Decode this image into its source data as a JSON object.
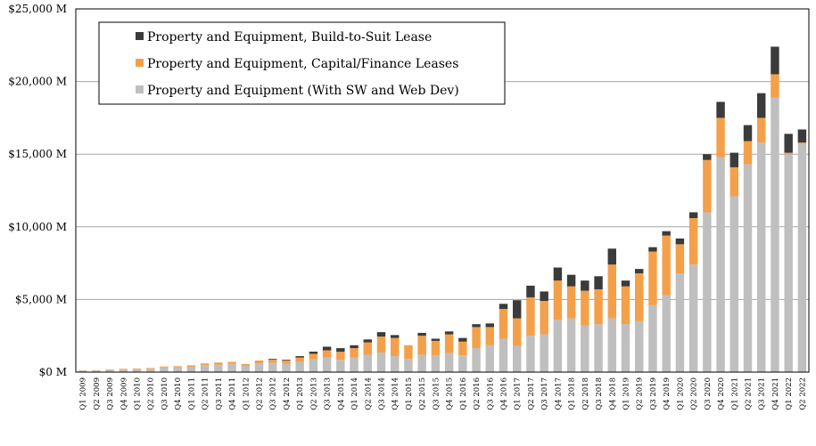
{
  "chart_data": {
    "type": "bar",
    "stacked": true,
    "title": "",
    "xlabel": "",
    "ylabel": "",
    "ylim": [
      0,
      25000
    ],
    "yticks": [
      0,
      5000,
      10000,
      15000,
      20000,
      25000
    ],
    "ytick_labels": [
      "$0 M",
      "$5,000 M",
      "$10,000 M",
      "$15,000 M",
      "$20,000 M",
      "$25,000 M"
    ],
    "grid": "horizontal",
    "legend_position": "top-left",
    "categories": [
      "Q1 2009",
      "Q2 2009",
      "Q3 2009",
      "Q4 2009",
      "Q1 2010",
      "Q2 2010",
      "Q3 2010",
      "Q4 2010",
      "Q1 2011",
      "Q2 2011",
      "Q3 2011",
      "Q4 2011",
      "Q1 2012",
      "Q2 2012",
      "Q3 2012",
      "Q4 2012",
      "Q1 2013",
      "Q2 2013",
      "Q3 2013",
      "Q4 2013",
      "Q1 2014",
      "Q2 2014",
      "Q3 2014",
      "Q4 2014",
      "Q1 2015",
      "Q2 2015",
      "Q3 2015",
      "Q4 2015",
      "Q1 2016",
      "Q2 2016",
      "Q3 2016",
      "Q4 2016",
      "Q1 2017",
      "Q2 2017",
      "Q3 2017",
      "Q4 2017",
      "Q1 2018",
      "Q2 2018",
      "Q3 2018",
      "Q4 2018",
      "Q1 2019",
      "Q2 2019",
      "Q3 2019",
      "Q4 2019",
      "Q1 2020",
      "Q2 2020",
      "Q3 2020",
      "Q4 2020",
      "Q1 2021",
      "Q2 2021",
      "Q3 2021",
      "Q4 2021",
      "Q1 2022",
      "Q2 2022"
    ],
    "series": [
      {
        "name": "Property and Equipment (With SW and Web Dev)",
        "color": "#bfbfbf",
        "values": [
          100,
          110,
          150,
          180,
          200,
          220,
          320,
          330,
          370,
          480,
          520,
          560,
          430,
          600,
          650,
          580,
          700,
          880,
          1000,
          850,
          1000,
          1200,
          1350,
          1100,
          900,
          1200,
          1150,
          1300,
          1150,
          1650,
          1850,
          2300,
          1800,
          2500,
          2600,
          3600,
          3700,
          3200,
          3300,
          3700,
          3300,
          3500,
          4600,
          5300,
          6800,
          7400,
          11000,
          14800,
          12100,
          14300,
          15800,
          18900,
          15000,
          15700
        ]
      },
      {
        "name": "Property and Equipment, Capital/Finance Leases",
        "color": "#f4a04a",
        "values": [
          20,
          25,
          35,
          45,
          50,
          60,
          70,
          80,
          100,
          120,
          140,
          150,
          130,
          200,
          220,
          220,
          300,
          380,
          500,
          550,
          650,
          850,
          1100,
          1250,
          950,
          1300,
          1000,
          1300,
          950,
          1450,
          1250,
          2050,
          1900,
          2650,
          2300,
          2700,
          2200,
          2400,
          2400,
          3700,
          2600,
          3300,
          3700,
          4100,
          2000,
          3200,
          3600,
          2700,
          2000,
          1600,
          1700,
          1600,
          100,
          100
        ]
      },
      {
        "name": "Property and Equipment, Build-to-Suit Lease",
        "color": "#3b3b3b",
        "values": [
          0,
          0,
          0,
          0,
          0,
          0,
          0,
          0,
          0,
          0,
          0,
          0,
          0,
          0,
          50,
          50,
          100,
          150,
          250,
          250,
          200,
          200,
          300,
          200,
          0,
          200,
          150,
          200,
          250,
          200,
          250,
          350,
          1250,
          800,
          650,
          900,
          800,
          700,
          900,
          1100,
          400,
          300,
          300,
          300,
          400,
          400,
          400,
          1100,
          1000,
          1100,
          1700,
          1900,
          1300,
          900
        ]
      }
    ]
  }
}
